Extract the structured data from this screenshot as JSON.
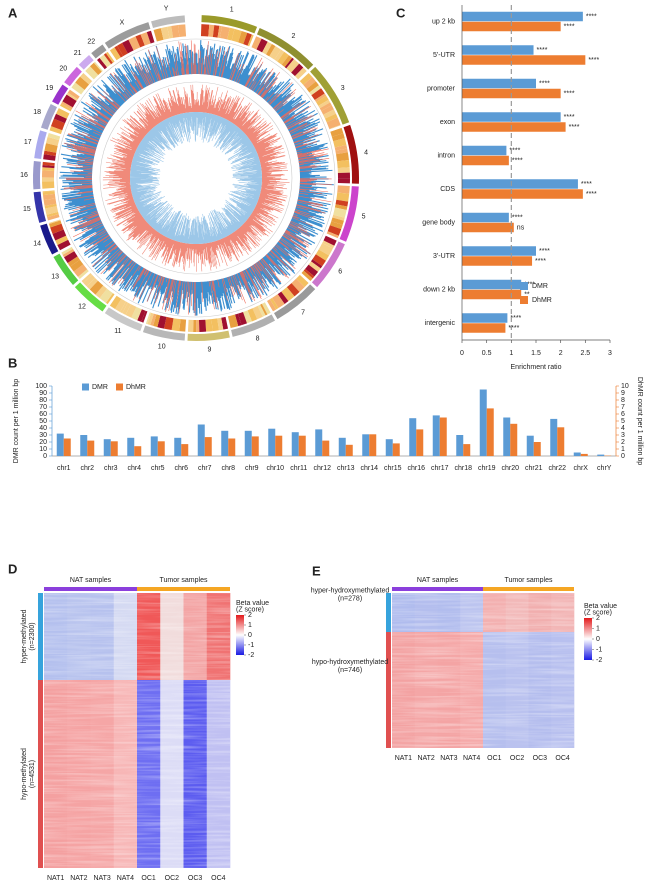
{
  "panels": [
    "A",
    "B",
    "C",
    "D",
    "E"
  ],
  "circos": {
    "chromosomes": [
      "1",
      "2",
      "3",
      "4",
      "5",
      "6",
      "7",
      "8",
      "9",
      "10",
      "11",
      "12",
      "13",
      "14",
      "15",
      "16",
      "17",
      "18",
      "19",
      "20",
      "21",
      "22",
      "X",
      "Y"
    ]
  },
  "chart_data": [
    {
      "type": "barh",
      "categories": [
        "up 2 kb",
        "5'-UTR",
        "promoter",
        "exon",
        "intron",
        "CDS",
        "gene body",
        "3'-UTR",
        "down 2 kb",
        "intergenic"
      ],
      "series": [
        {
          "name": "DMR",
          "color": "#5b9bd5",
          "values": [
            2.45,
            1.45,
            1.5,
            2.0,
            0.9,
            2.35,
            0.95,
            1.5,
            1.2,
            0.92
          ],
          "annotations": [
            "****",
            "****",
            "****",
            "****",
            "****",
            "****",
            "****",
            "****",
            "****",
            "****"
          ]
        },
        {
          "name": "DhMR",
          "color": "#ed7d31",
          "values": [
            2.0,
            2.5,
            2.0,
            2.1,
            0.95,
            2.45,
            1.05,
            1.42,
            1.2,
            0.88
          ],
          "annotations": [
            "****",
            "****",
            "****",
            "****",
            "****",
            "****",
            "ns",
            "****",
            "**",
            "****"
          ]
        }
      ],
      "xlim": [
        0,
        3
      ],
      "xticks": [
        0,
        0.5,
        1,
        1.5,
        2,
        2.5,
        3
      ],
      "xlabel": "Enrichment ratio",
      "refline": 1,
      "legend": "lower right"
    },
    {
      "type": "bar",
      "categories": [
        "chr1",
        "chr2",
        "chr3",
        "chr4",
        "chr5",
        "chr6",
        "chr7",
        "chr8",
        "chr9",
        "chr10",
        "chr11",
        "chr12",
        "chr13",
        "chr14",
        "chr15",
        "chr16",
        "chr17",
        "chr18",
        "chr19",
        "chr20",
        "chr21",
        "chr22",
        "chrX",
        "chrY"
      ],
      "series": [
        {
          "name": "DMR",
          "color": "#5b9bd5",
          "values": [
            32,
            30,
            24,
            26,
            28,
            26,
            45,
            36,
            36,
            39,
            34,
            38,
            26,
            31,
            24,
            54,
            58,
            30,
            95,
            55,
            29,
            53,
            5,
            2
          ]
        },
        {
          "name": "DhMR",
          "color": "#ed7d31",
          "axis": "y2",
          "values": [
            2.5,
            2.2,
            2.1,
            1.4,
            2.1,
            1.7,
            2.7,
            2.5,
            2.8,
            2.9,
            2.9,
            2.2,
            1.6,
            3.1,
            1.8,
            3.8,
            5.5,
            1.7,
            6.8,
            4.6,
            2.0,
            4.1,
            0.3,
            0.05
          ]
        }
      ],
      "ylim": [
        0,
        100
      ],
      "yticks": [
        0,
        10,
        20,
        30,
        40,
        50,
        60,
        70,
        80,
        90,
        100
      ],
      "y2lim": [
        0,
        10
      ],
      "y2ticks": [
        0,
        1,
        2,
        3,
        4,
        5,
        6,
        7,
        8,
        9,
        10
      ],
      "ylabel": "DMR count per 1 million bp",
      "y2label": "DhMR count per 1 million bp",
      "legend": "upper left"
    }
  ],
  "heatmaps": [
    {
      "groups": [
        {
          "name": "NAT samples",
          "color": "#8b3fdc"
        },
        {
          "name": "Tumor samples",
          "color": "#f5a623"
        }
      ],
      "samples": [
        "NAT1",
        "NAT2",
        "NAT3",
        "NAT4",
        "OC1",
        "OC2",
        "OC3",
        "OC4"
      ],
      "clusters": [
        {
          "label": [
            "hyper-methylated",
            "(n=2300)"
          ],
          "color": "#36a3dc",
          "colors": [
            "#b4c0ee",
            "#b8c3ee",
            "#b6c1ee",
            "#d4d9f2",
            "#f05858",
            "#f1dcdc",
            "#f3a4a4",
            "#f07272"
          ]
        },
        {
          "label": [
            "hypo-methylated",
            "(n=4531)"
          ],
          "color": "#e05050",
          "colors": [
            "#f4a0a0",
            "#f5a3a3",
            "#f5a6a6",
            "#f7b6b6",
            "#6e6ef2",
            "#dcdcf6",
            "#5c5cf0",
            "#c0c0f2"
          ]
        }
      ],
      "colorbar": {
        "title": [
          "Beta value",
          "(Z score)"
        ],
        "ticks": [
          2,
          1,
          0,
          -1,
          -2
        ]
      }
    },
    {
      "groups": [
        {
          "name": "NAT samples",
          "color": "#8b3fdc"
        },
        {
          "name": "Tumor samples",
          "color": "#f5a623"
        }
      ],
      "samples": [
        "NAT1",
        "NAT2",
        "NAT3",
        "NAT4",
        "OC1",
        "OC2",
        "OC3",
        "OC4"
      ],
      "clusters": [
        {
          "label": [
            "hyper-hydroxymethylated",
            "(n=278)"
          ],
          "color": "#36a3dc",
          "colors": [
            "#b0bcee",
            "#b4beee",
            "#b2bdee",
            "#bcc4ef",
            "#f3b0b0",
            "#f2b8b8",
            "#f1aeae",
            "#f2b4b4"
          ]
        },
        {
          "label": [
            "hypo-hydroxymethylated",
            "(n=746)"
          ],
          "color": "#e05050",
          "colors": [
            "#f3a2a2",
            "#f4a6a6",
            "#f4a4a4",
            "#f5aaaa",
            "#b6bfee",
            "#bac2ef",
            "#b4bdee",
            "#b8c0ef"
          ]
        }
      ],
      "colorbar": {
        "title": [
          "Beta value",
          "(Z score)"
        ],
        "ticks": [
          2,
          1,
          0,
          -1,
          -2
        ]
      }
    }
  ]
}
